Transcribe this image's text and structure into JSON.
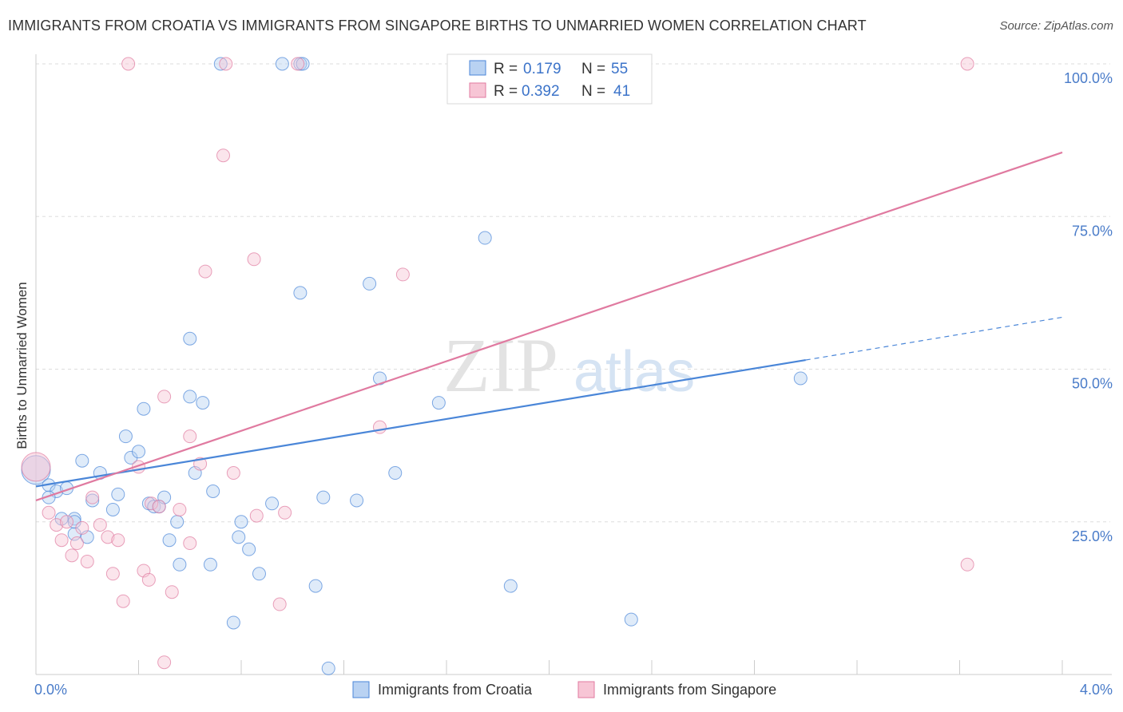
{
  "title": "IMMIGRANTS FROM CROATIA VS IMMIGRANTS FROM SINGAPORE BIRTHS TO UNMARRIED WOMEN CORRELATION CHART",
  "source": "Source: ZipAtlas.com",
  "watermark": {
    "zip": "ZIP",
    "atlas": "atlas"
  },
  "chart_data": {
    "type": "scatter",
    "title": "IMMIGRANTS FROM CROATIA VS IMMIGRANTS FROM SINGAPORE BIRTHS TO UNMARRIED WOMEN CORRELATION CHART",
    "xlabel": "",
    "ylabel": "Births to Unmarried Women",
    "xlim": [
      0,
      4.0
    ],
    "ylim": [
      0,
      100
    ],
    "x_ticks": [
      "0.0%",
      "4.0%"
    ],
    "y_ticks": [
      {
        "value": 25,
        "label": "25.0%"
      },
      {
        "value": 50,
        "label": "50.0%"
      },
      {
        "value": 75,
        "label": "75.0%"
      },
      {
        "value": 100,
        "label": "100.0%"
      }
    ],
    "grid": true,
    "legend_position": "top-center",
    "colors": {
      "croatia": "#4a86d8",
      "singapore": "#e07aa0",
      "croatia_fill": "#b9d2f2",
      "singapore_fill": "#f7c5d5"
    },
    "stats": [
      {
        "series": "Immigrants from Croatia",
        "r_label": "R =",
        "r": "0.179",
        "n_label": "N =",
        "n": "55"
      },
      {
        "series": "Immigrants from Singapore",
        "r_label": "R =",
        "r": "0.392",
        "n_label": "N =",
        "n": "41"
      }
    ],
    "series": [
      {
        "name": "Immigrants from Croatia",
        "color": "#4a86d8",
        "trend": {
          "x0": 0,
          "y0": 30.8,
          "x1": 3.0,
          "y1": 51.5,
          "dashed_to_x": 4.0,
          "dashed_to_y": 58.5
        },
        "points": [
          [
            0.0,
            33.5
          ],
          [
            0.05,
            31.0
          ],
          [
            0.08,
            30.0
          ],
          [
            0.1,
            25.5
          ],
          [
            0.15,
            23.0
          ],
          [
            0.15,
            25.5
          ],
          [
            0.15,
            25.0
          ],
          [
            0.18,
            35.0
          ],
          [
            0.2,
            22.5
          ],
          [
            0.22,
            28.5
          ],
          [
            0.25,
            33.0
          ],
          [
            0.3,
            27.0
          ],
          [
            0.32,
            29.5
          ],
          [
            0.35,
            39.0
          ],
          [
            0.37,
            35.5
          ],
          [
            0.4,
            36.5
          ],
          [
            0.42,
            43.5
          ],
          [
            0.44,
            28.0
          ],
          [
            0.46,
            27.5
          ],
          [
            0.48,
            27.5
          ],
          [
            0.5,
            29.0
          ],
          [
            0.52,
            22.0
          ],
          [
            0.55,
            25.0
          ],
          [
            0.56,
            18.0
          ],
          [
            0.6,
            55.0
          ],
          [
            0.6,
            45.5
          ],
          [
            0.62,
            33.0
          ],
          [
            0.65,
            44.5
          ],
          [
            0.68,
            18.0
          ],
          [
            0.69,
            30.0
          ],
          [
            0.72,
            100.0
          ],
          [
            0.77,
            8.5
          ],
          [
            0.79,
            22.5
          ],
          [
            0.8,
            25.0
          ],
          [
            0.83,
            20.5
          ],
          [
            0.87,
            16.5
          ],
          [
            0.92,
            28.0
          ],
          [
            0.96,
            100.0
          ],
          [
            1.03,
            100.0
          ],
          [
            1.04,
            100.0
          ],
          [
            1.03,
            62.5
          ],
          [
            1.09,
            14.5
          ],
          [
            1.12,
            29.0
          ],
          [
            1.14,
            1.0
          ],
          [
            1.25,
            28.5
          ],
          [
            1.3,
            64.0
          ],
          [
            1.34,
            48.5
          ],
          [
            1.4,
            33.0
          ],
          [
            1.57,
            44.5
          ],
          [
            1.75,
            71.5
          ],
          [
            1.85,
            14.5
          ],
          [
            2.32,
            9.0
          ],
          [
            2.98,
            48.5
          ],
          [
            0.12,
            30.5
          ],
          [
            0.05,
            29.0
          ]
        ]
      },
      {
        "name": "Immigrants from Singapore",
        "color": "#e07aa0",
        "trend": {
          "x0": 0,
          "y0": 28.5,
          "x1": 4.0,
          "y1": 85.5
        },
        "points": [
          [
            0.0,
            34.0
          ],
          [
            0.05,
            26.5
          ],
          [
            0.08,
            24.5
          ],
          [
            0.1,
            22.0
          ],
          [
            0.12,
            25.0
          ],
          [
            0.14,
            19.5
          ],
          [
            0.16,
            21.5
          ],
          [
            0.18,
            24.0
          ],
          [
            0.2,
            18.5
          ],
          [
            0.22,
            29.0
          ],
          [
            0.25,
            24.5
          ],
          [
            0.28,
            22.5
          ],
          [
            0.3,
            16.5
          ],
          [
            0.32,
            22.0
          ],
          [
            0.34,
            12.0
          ],
          [
            0.36,
            100.0
          ],
          [
            0.4,
            34.0
          ],
          [
            0.42,
            17.0
          ],
          [
            0.44,
            15.5
          ],
          [
            0.45,
            28.0
          ],
          [
            0.48,
            27.5
          ],
          [
            0.5,
            2.0
          ],
          [
            0.5,
            45.5
          ],
          [
            0.53,
            13.5
          ],
          [
            0.56,
            27.0
          ],
          [
            0.6,
            21.5
          ],
          [
            0.6,
            39.0
          ],
          [
            0.64,
            34.5
          ],
          [
            0.66,
            66.0
          ],
          [
            0.73,
            85.0
          ],
          [
            0.74,
            100.0
          ],
          [
            0.77,
            33.0
          ],
          [
            0.85,
            68.0
          ],
          [
            0.86,
            26.0
          ],
          [
            0.95,
            11.5
          ],
          [
            0.97,
            26.5
          ],
          [
            1.02,
            100.0
          ],
          [
            1.34,
            40.5
          ],
          [
            1.43,
            65.5
          ],
          [
            3.63,
            100.0
          ],
          [
            3.63,
            18.0
          ]
        ]
      }
    ]
  },
  "bottom_legend": [
    {
      "label": "Immigrants from Croatia"
    },
    {
      "label": "Immigrants from Singapore"
    }
  ]
}
